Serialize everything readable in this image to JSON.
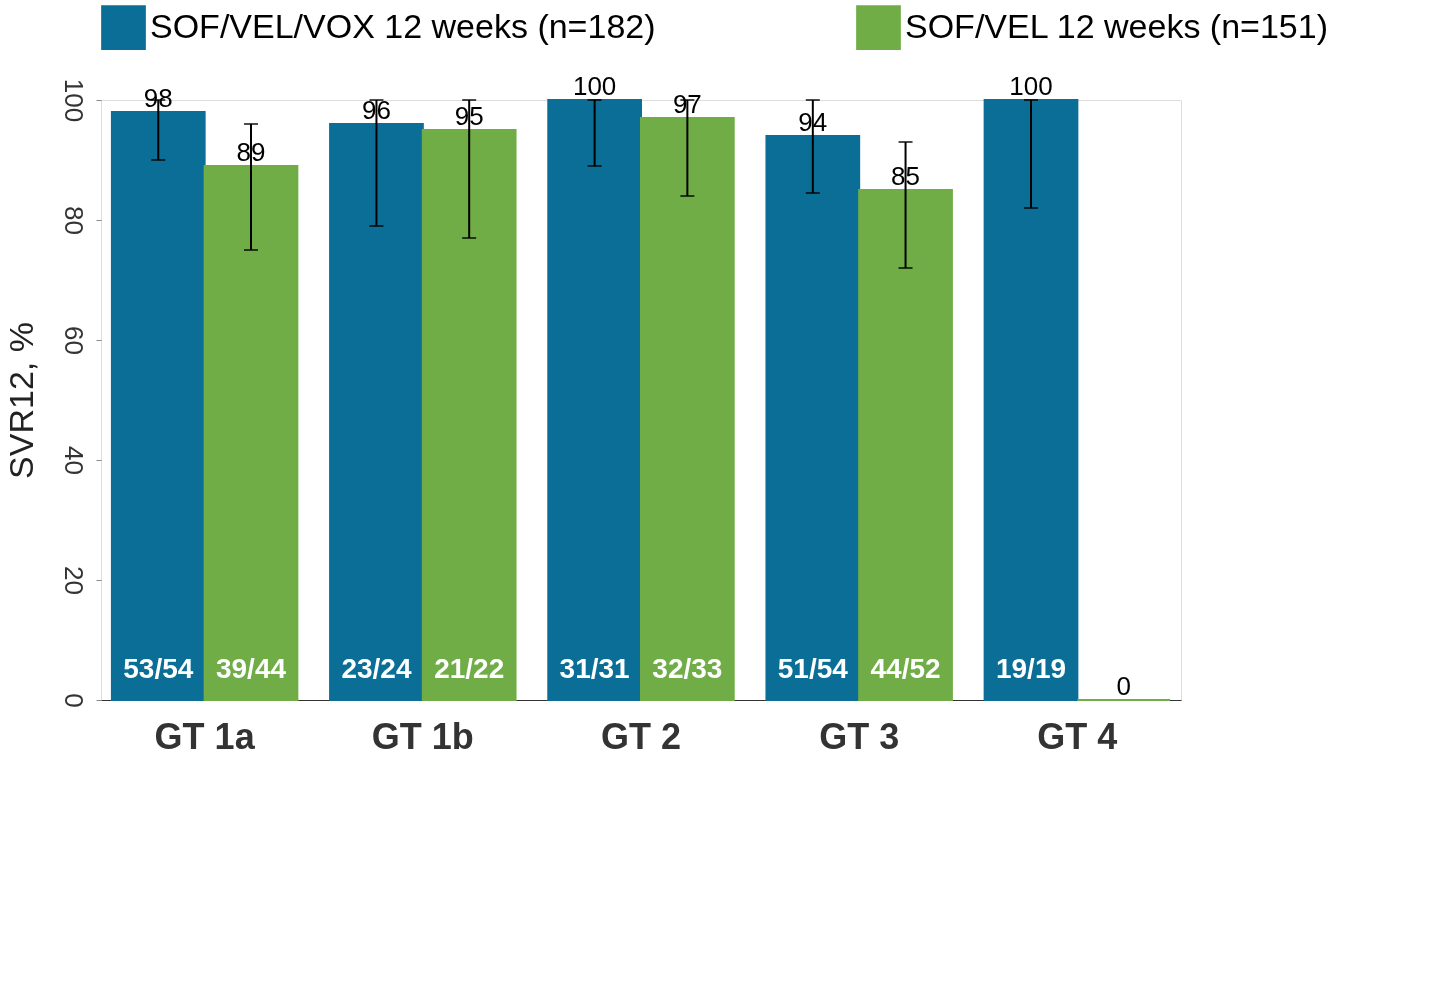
{
  "chart_data": {
    "type": "bar",
    "ylabel": "SVR12, %",
    "categories": [
      "GT 1a",
      "GT 1b",
      "GT 2",
      "GT 3",
      "GT 4"
    ],
    "series": [
      {
        "name": "SOF/VEL/VOX 12 weeks (n=182)",
        "color": "#0b6e96",
        "values": [
          98,
          96,
          100,
          94,
          100
        ],
        "errors": [
          [
            90,
            100
          ],
          [
            79,
            100
          ],
          [
            89,
            100
          ],
          [
            84.5,
            100
          ],
          [
            82,
            100
          ]
        ]
      },
      {
        "name": "SOF/VEL 12 weeks (n=151)",
        "color": "#70ad47",
        "values": [
          89,
          95,
          97,
          85,
          0
        ],
        "errors": [
          [
            75,
            96
          ],
          [
            77,
            100
          ],
          [
            84,
            100
          ],
          [
            72,
            93
          ],
          null
        ]
      }
    ],
    "data_labels": true,
    "ylim": [
      0,
      100
    ],
    "yticks": [
      0,
      20,
      40,
      60,
      80,
      100
    ],
    "legend": "top",
    "annotations": [
      "53/54",
      "39/44",
      "23/24",
      "21/22",
      "31/31",
      "32/33",
      "51/54",
      "44/52",
      "19/19"
    ]
  }
}
